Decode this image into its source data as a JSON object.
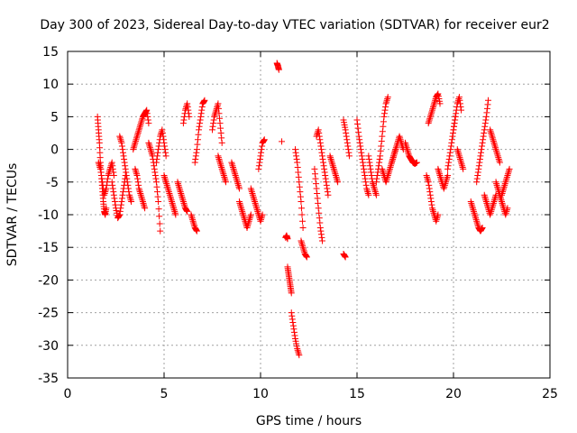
{
  "chart_data": {
    "type": "scatter",
    "title": "Day 300 of 2023, Sidereal Day-to-day VTEC variation (SDTVAR) for receiver eur2",
    "xlabel": "GPS time / hours",
    "ylabel": "SDTVAR / TECUs",
    "xlim": [
      0,
      25
    ],
    "ylim": [
      -35,
      15
    ],
    "xticks": [
      0,
      5,
      10,
      15,
      20,
      25
    ],
    "yticks": [
      -35,
      -30,
      -25,
      -20,
      -15,
      -10,
      -5,
      0,
      5,
      10,
      15
    ],
    "grid": true,
    "marker": "+",
    "marker_color": "#ff0000",
    "series": [
      {
        "name": "eur2",
        "segments": [
          {
            "x": [
              1.55,
              1.6,
              1.65,
              1.7,
              1.75,
              1.8,
              1.85,
              1.9,
              1.95,
              2.0
            ],
            "y": [
              5,
              3,
              1,
              -2,
              -4,
              -6,
              -8,
              -9.5,
              -10,
              -9
            ]
          },
          {
            "x": [
              1.6,
              1.7,
              1.8,
              1.9,
              2.0,
              2.1,
              2.2,
              2.3,
              2.4
            ],
            "y": [
              -2,
              -3,
              -5,
              -7,
              -6,
              -4,
              -3,
              -2,
              -4
            ]
          },
          {
            "x": [
              2.3,
              2.4,
              2.5,
              2.6,
              2.7,
              2.8,
              2.9,
              3.0
            ],
            "y": [
              -5,
              -7,
              -9,
              -10.5,
              -10,
              -8,
              -6,
              -4
            ]
          },
          {
            "x": [
              2.7,
              2.8,
              2.9,
              3.0,
              3.1,
              3.2,
              3.3
            ],
            "y": [
              2,
              1,
              -1,
              -3,
              -5,
              -7,
              -8
            ]
          },
          {
            "x": [
              3.4,
              3.5,
              3.6,
              3.7,
              3.8,
              3.9,
              4.0,
              4.1,
              4.2
            ],
            "y": [
              0,
              1,
              2,
              3,
              4,
              5,
              5.5,
              6,
              4
            ]
          },
          {
            "x": [
              3.5,
              3.6,
              3.7,
              3.8,
              3.9,
              4.0
            ],
            "y": [
              -3,
              -4,
              -6,
              -7,
              -8,
              -9
            ]
          },
          {
            "x": [
              4.2,
              4.3,
              4.4,
              4.5,
              4.6,
              4.7,
              4.8
            ],
            "y": [
              1,
              0,
              -1,
              -3,
              -5,
              -8,
              -12.5
            ]
          },
          {
            "x": [
              4.6,
              4.7,
              4.8,
              4.9,
              5.0,
              5.1
            ],
            "y": [
              -2,
              0,
              2,
              3,
              1,
              -1
            ]
          },
          {
            "x": [
              5.0,
              5.1,
              5.2,
              5.3,
              5.4,
              5.5,
              5.6
            ],
            "y": [
              -4,
              -5,
              -6,
              -7,
              -8,
              -9,
              -10
            ]
          },
          {
            "x": [
              5.7,
              5.8,
              5.9,
              6.0,
              6.1,
              6.2
            ],
            "y": [
              -5,
              -6,
              -7,
              -8,
              -9,
              -9.5
            ]
          },
          {
            "x": [
              6.0,
              6.1,
              6.2,
              6.3
            ],
            "y": [
              4,
              6,
              7,
              5
            ]
          },
          {
            "x": [
              6.4,
              6.5,
              6.6,
              6.7
            ],
            "y": [
              -10,
              -11,
              -12,
              -12.5
            ]
          },
          {
            "x": [
              6.6,
              6.7,
              6.8,
              6.9,
              7.0,
              7.1
            ],
            "y": [
              -2,
              0,
              3,
              5,
              7,
              7.5
            ]
          },
          {
            "x": [
              7.5,
              7.6,
              7.7,
              7.8,
              7.9,
              8.0
            ],
            "y": [
              3,
              5,
              6,
              7,
              4,
              1
            ]
          },
          {
            "x": [
              7.8,
              7.9,
              8.0,
              8.1,
              8.2
            ],
            "y": [
              -1,
              -2,
              -3,
              -4,
              -5
            ]
          },
          {
            "x": [
              8.5,
              8.6,
              8.7,
              8.8,
              8.9
            ],
            "y": [
              -2,
              -3,
              -4,
              -5,
              -6
            ]
          },
          {
            "x": [
              8.9,
              9.0,
              9.1,
              9.2,
              9.3,
              9.4,
              9.5
            ],
            "y": [
              -8,
              -9,
              -10,
              -11,
              -12,
              -11,
              -10
            ]
          },
          {
            "x": [
              9.5,
              9.6,
              9.7,
              9.8,
              9.9,
              10.0,
              10.1
            ],
            "y": [
              -6,
              -7,
              -8,
              -9,
              -10,
              -11,
              -10
            ]
          },
          {
            "x": [
              9.9,
              10.0,
              10.1,
              10.2
            ],
            "y": [
              -3,
              -1,
              1,
              1.5
            ]
          },
          {
            "x": [
              10.85,
              10.9,
              10.95
            ],
            "y": [
              13.2,
              12.8,
              12.2
            ]
          },
          {
            "x": [
              11.1
            ],
            "y": [
              1.2
            ]
          },
          {
            "x": [
              11.3,
              11.35,
              11.4
            ],
            "y": [
              -13.5,
              -13.2,
              -13.7
            ]
          },
          {
            "x": [
              11.4,
              11.45,
              11.5,
              11.55,
              11.6
            ],
            "y": [
              -18,
              -19,
              -20,
              -21,
              -22
            ]
          },
          {
            "x": [
              11.6,
              11.7,
              11.8,
              11.9,
              12.0
            ],
            "y": [
              -25,
              -27,
              -29,
              -30.5,
              -31.5
            ]
          },
          {
            "x": [
              11.8,
              11.9,
              12.0,
              12.1,
              12.2
            ],
            "y": [
              0,
              -2,
              -5,
              -8,
              -12
            ]
          },
          {
            "x": [
              12.1,
              12.2,
              12.3,
              12.4
            ],
            "y": [
              -14,
              -15,
              -16,
              -16.5
            ]
          },
          {
            "x": [
              12.8,
              12.9,
              13.0,
              13.1,
              13.2
            ],
            "y": [
              -3,
              -6,
              -9,
              -12,
              -14
            ]
          },
          {
            "x": [
              12.9,
              13.0,
              13.1,
              13.2,
              13.3,
              13.4,
              13.5
            ],
            "y": [
              2,
              3,
              1,
              -1,
              -3,
              -5,
              -7
            ]
          },
          {
            "x": [
              13.6,
              13.7,
              13.8,
              13.9,
              14.0
            ],
            "y": [
              -1,
              -2,
              -3,
              -4,
              -5
            ]
          },
          {
            "x": [
              14.3,
              14.4,
              14.5,
              14.6
            ],
            "y": [
              4.5,
              3,
              1,
              -1
            ]
          },
          {
            "x": [
              14.3,
              14.4
            ],
            "y": [
              -16,
              -16.5
            ]
          },
          {
            "x": [
              15.0,
              15.1,
              15.2,
              15.3,
              15.4,
              15.5,
              15.6
            ],
            "y": [
              4.5,
              2,
              0,
              -2,
              -4,
              -6,
              -7
            ]
          },
          {
            "x": [
              15.6,
              15.7,
              15.8,
              15.9,
              16.0
            ],
            "y": [
              -1,
              -3,
              -5,
              -6,
              -7
            ]
          },
          {
            "x": [
              16.0,
              16.1,
              16.2,
              16.3,
              16.4,
              16.5,
              16.6
            ],
            "y": [
              -5,
              -3,
              -1,
              2,
              5,
              7,
              8
            ]
          },
          {
            "x": [
              16.3,
              16.4,
              16.5,
              16.6,
              16.7,
              16.8,
              16.9,
              17.0
            ],
            "y": [
              -3,
              -4,
              -5,
              -4,
              -3,
              -2,
              -1,
              0
            ]
          },
          {
            "x": [
              16.8,
              16.9,
              17.0,
              17.1,
              17.2,
              17.3,
              17.4
            ],
            "y": [
              -2,
              -1,
              0,
              1,
              2,
              1,
              0
            ]
          },
          {
            "x": [
              17.5,
              17.6,
              17.7,
              17.8,
              17.9,
              18.0,
              18.1
            ],
            "y": [
              1,
              0,
              -1,
              -1.5,
              -2,
              -2.2,
              -2
            ]
          },
          {
            "x": [
              18.6,
              18.7,
              18.8,
              18.9,
              19.0,
              19.1,
              19.2
            ],
            "y": [
              -4,
              -5,
              -7,
              -9,
              -10,
              -11,
              -10
            ]
          },
          {
            "x": [
              18.7,
              18.8,
              18.9,
              19.0,
              19.1,
              19.2,
              19.3
            ],
            "y": [
              4,
              5,
              6,
              7,
              8,
              8.5,
              7
            ]
          },
          {
            "x": [
              19.2,
              19.3,
              19.4,
              19.5,
              19.6,
              19.7
            ],
            "y": [
              -3,
              -4,
              -5,
              -6,
              -5,
              -4
            ]
          },
          {
            "x": [
              19.7,
              19.8,
              19.9,
              20.0,
              20.1
            ],
            "y": [
              -3,
              -1,
              1,
              3,
              5
            ]
          },
          {
            "x": [
              20.0,
              20.1,
              20.2,
              20.3,
              20.4
            ],
            "y": [
              3,
              5,
              7,
              8,
              6
            ]
          },
          {
            "x": [
              20.2,
              20.3,
              20.4,
              20.5
            ],
            "y": [
              0,
              -1,
              -2,
              -3
            ]
          },
          {
            "x": [
              20.9,
              21.0,
              21.1,
              21.2,
              21.3,
              21.4,
              21.5
            ],
            "y": [
              -8,
              -9,
              -10,
              -11,
              -12,
              -12.5,
              -12
            ]
          },
          {
            "x": [
              21.2,
              21.3,
              21.4,
              21.5,
              21.6,
              21.7,
              21.8
            ],
            "y": [
              -5,
              -3,
              -1,
              1,
              3,
              5,
              7.5
            ]
          },
          {
            "x": [
              21.6,
              21.7,
              21.8,
              21.9,
              22.0,
              22.1,
              22.2
            ],
            "y": [
              -7,
              -8,
              -9,
              -10,
              -9,
              -8,
              -7
            ]
          },
          {
            "x": [
              21.9,
              22.0,
              22.1,
              22.2,
              22.3,
              22.4
            ],
            "y": [
              3,
              2,
              1,
              0,
              -1,
              -2
            ]
          },
          {
            "x": [
              22.2,
              22.3,
              22.4,
              22.5,
              22.6,
              22.7,
              22.8
            ],
            "y": [
              -5,
              -6,
              -7,
              -8,
              -9,
              -10,
              -9
            ]
          },
          {
            "x": [
              22.5,
              22.6,
              22.7,
              22.8,
              22.9
            ],
            "y": [
              -7,
              -6,
              -5,
              -4,
              -3
            ]
          }
        ]
      }
    ]
  }
}
